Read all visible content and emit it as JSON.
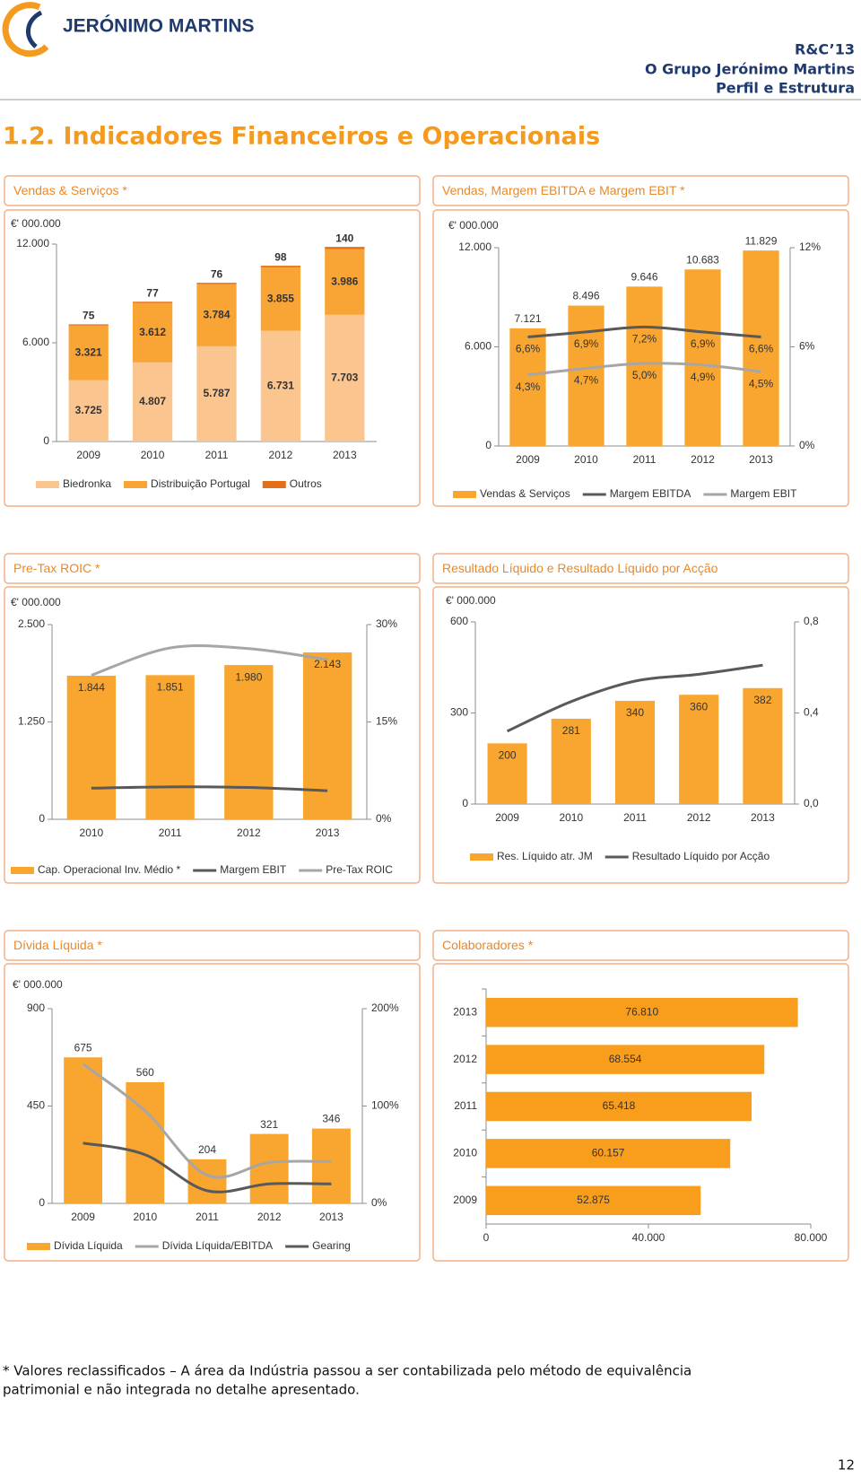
{
  "header": {
    "logo_text": "JERÓNIMO MARTINS",
    "report": "R&C’13",
    "section": "O Grupo Jerónimo Martins",
    "subsection": "Perfil e Estrutura"
  },
  "page_title": "1.2. Indicadores Financeiros e Operacionais",
  "chart_data": [
    {
      "type": "bar",
      "stacked": true,
      "title": "Vendas & Serviços *",
      "unit": "€' 000.000",
      "categories": [
        "2009",
        "2010",
        "2011",
        "2012",
        "2013"
      ],
      "series": [
        {
          "name": "Biedronka",
          "type": "bar",
          "color": "#fbc590",
          "values": [
            3725,
            4807,
            5787,
            6731,
            7703
          ],
          "value_labels": [
            "3.725",
            "4.807",
            "5.787",
            "6.731",
            "7.703"
          ]
        },
        {
          "name": "Distribuição Portugal",
          "type": "bar",
          "color": "#f8a535",
          "values": [
            3321,
            3612,
            3784,
            3855,
            3986
          ],
          "value_labels": [
            "3.321",
            "3.612",
            "3.784",
            "3.855",
            "3.986"
          ]
        },
        {
          "name": "Outros",
          "type": "bar",
          "color": "#e2701b",
          "values": [
            75,
            77,
            76,
            98,
            140
          ]
        }
      ],
      "ylim": [
        0,
        12000
      ],
      "yticks": [
        0,
        {
          "value": 6000,
          "label": "6.000"
        },
        {
          "value": 12000,
          "label": "12.000"
        }
      ]
    },
    {
      "type": "bar",
      "title": "Vendas, Margem EBITDA e Margem EBIT *",
      "unit": "€' 000.000",
      "categories": [
        "2009",
        "2010",
        "2011",
        "2012",
        "2013"
      ],
      "series": [
        {
          "name": "Vendas & Serviços",
          "type": "bar",
          "color": "#f9a630",
          "values": [
            7121,
            8496,
            9646,
            10683,
            11829
          ],
          "value_labels": [
            "7.121",
            "8.496",
            "9.646",
            "10.683",
            "11.829"
          ]
        },
        {
          "name": "Margem EBITDA",
          "type": "line",
          "axis": "y2",
          "color": "#595959",
          "values": [
            6.6,
            6.9,
            7.2,
            6.9,
            6.6
          ],
          "value_labels": [
            "6,6%",
            "6,9%",
            "7,2%",
            "6,9%",
            "6,6%"
          ]
        },
        {
          "name": "Margem EBIT",
          "type": "line",
          "axis": "y2",
          "color": "#a6a6a6",
          "values": [
            4.3,
            4.7,
            5.0,
            4.9,
            4.5
          ],
          "value_labels": [
            "4,3%",
            "4,7%",
            "5,0%",
            "4,9%",
            "4,5%"
          ]
        }
      ],
      "ylim": [
        0,
        12000
      ],
      "yticks": [
        0,
        {
          "value": 6000,
          "label": "6.000"
        },
        {
          "value": 12000,
          "label": "12.000"
        }
      ],
      "y2lim": [
        0,
        12
      ],
      "y2ticks": [
        {
          "value": 0,
          "label": "0%"
        },
        {
          "value": 6,
          "label": "6%"
        },
        {
          "value": 12,
          "label": "12%"
        }
      ]
    },
    {
      "type": "bar",
      "title": "Pre-Tax ROIC *",
      "unit": "€' 000.000",
      "categories": [
        "2010",
        "2011",
        "2012",
        "2013"
      ],
      "series": [
        {
          "name": "Cap. Operacional Inv. Médio *",
          "type": "bar",
          "color": "#f9a630",
          "values": [
            1844,
            1851,
            1980,
            2143
          ],
          "value_labels": [
            "1.844",
            "1.851",
            "1.980",
            "2.143"
          ]
        },
        {
          "name": "Margem EBIT",
          "type": "line",
          "axis": "y2",
          "color": "#595959",
          "values": [
            4.8,
            5.0,
            4.9,
            4.4
          ]
        },
        {
          "name": "Pre-Tax ROIC",
          "type": "line",
          "axis": "y2",
          "color": "#a6a6a6",
          "values": [
            22.2,
            26.4,
            26.3,
            24.6
          ]
        }
      ],
      "ylim": [
        0,
        2500
      ],
      "yticks": [
        0,
        {
          "value": 1250,
          "label": "1.250"
        },
        {
          "value": 2500,
          "label": "2.500"
        }
      ],
      "y2lim": [
        0,
        30
      ],
      "y2ticks": [
        {
          "value": 0,
          "label": "0%"
        },
        {
          "value": 15,
          "label": "15%"
        },
        {
          "value": 30,
          "label": "30%"
        }
      ]
    },
    {
      "type": "bar",
      "title": "Resultado Líquido  e Resultado Líquido  por Acção",
      "unit": "€' 000.000",
      "categories": [
        "2009",
        "2010",
        "2011",
        "2012",
        "2013"
      ],
      "series": [
        {
          "name": "Res. Líquido atr. JM",
          "type": "bar",
          "color": "#f9a630",
          "values": [
            200,
            281,
            340,
            360,
            382
          ]
        },
        {
          "name": "Resultado Líquido por Acção",
          "type": "line",
          "axis": "y2",
          "color": "#595959",
          "values": [
            0.32,
            0.45,
            0.54,
            0.57,
            0.61
          ]
        }
      ],
      "ylim": [
        0,
        600
      ],
      "yticks": [
        0,
        300,
        600
      ],
      "y2lim": [
        0,
        0.8
      ],
      "y2ticks": [
        {
          "value": 0,
          "label": "0,0"
        },
        {
          "value": 0.4,
          "label": "0,4"
        },
        {
          "value": 0.8,
          "label": "0,8"
        }
      ]
    },
    {
      "type": "bar",
      "title": "Dívida Líquida  *",
      "unit": "€' 000.000",
      "categories": [
        "2009",
        "2010",
        "2011",
        "2012",
        "2013"
      ],
      "series": [
        {
          "name": "Dívida Líquida",
          "type": "bar",
          "color": "#f9a630",
          "values": [
            675,
            560,
            204,
            321,
            346
          ]
        },
        {
          "name": "Dívida Líquida/EBITDA",
          "type": "line",
          "axis": "y2",
          "color": "#a6a6a6",
          "values": [
            143,
            95,
            29,
            42,
            43
          ]
        },
        {
          "name": "Gearing",
          "type": "line",
          "axis": "y2",
          "color": "#595959",
          "values": [
            62,
            50,
            13,
            20,
            20
          ]
        }
      ],
      "ylim": [
        0,
        900
      ],
      "yticks": [
        0,
        450,
        900
      ],
      "y2lim": [
        0,
        200
      ],
      "y2ticks": [
        {
          "value": 0,
          "label": "0%"
        },
        {
          "value": 100,
          "label": "100%"
        },
        {
          "value": 200,
          "label": "200%"
        }
      ]
    },
    {
      "type": "barh",
      "title": "Colaboradores *",
      "color": "#f99d1c",
      "categories": [
        "2013",
        "2012",
        "2011",
        "2010",
        "2009"
      ],
      "values": [
        76810,
        68554,
        65418,
        60157,
        52875
      ],
      "value_labels": [
        "76.810",
        "68.554",
        "65.418",
        "60.157",
        "52.875"
      ],
      "xlim": [
        0,
        80000
      ],
      "xticks": [
        0,
        {
          "value": 40000,
          "label": "40.000"
        },
        {
          "value": 80000,
          "label": "80.000"
        }
      ]
    }
  ],
  "footnote": [
    "* Valores reclassificados – A  área da Indústria passou a ser contabilizada pelo método de equivalência",
    "patrimonial e não integrada no detalhe apresentado."
  ],
  "page_number": 12
}
